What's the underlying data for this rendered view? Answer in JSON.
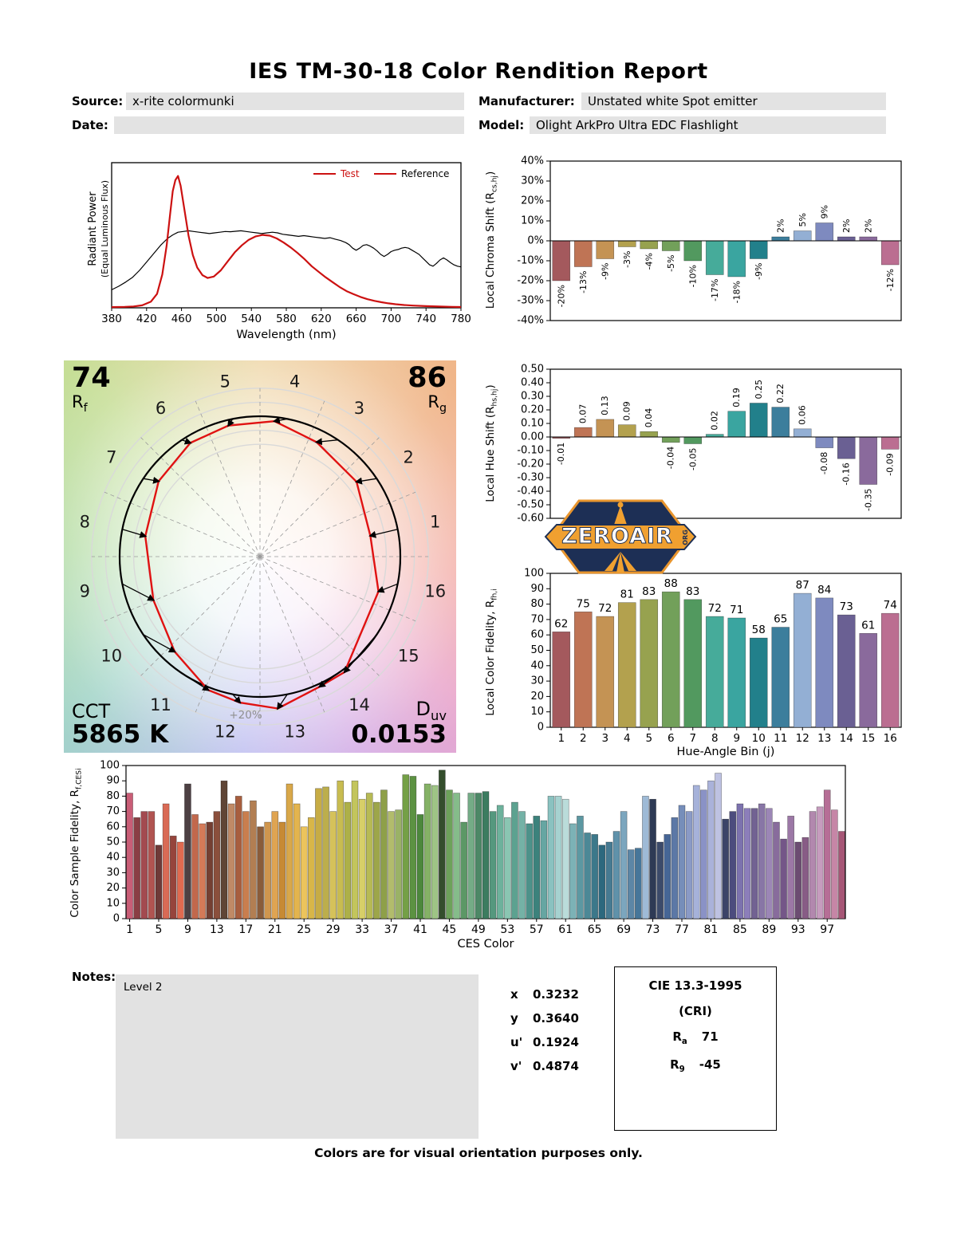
{
  "report": {
    "title": "IES TM-30-18 Color Rendition Report",
    "fields": {
      "source_label": "Source:",
      "source": "x-rite colormunki",
      "manufacturer_label": "Manufacturer:",
      "manufacturer": "Unstated white Spot emitter",
      "date_label": "Date:",
      "date": "",
      "model_label": "Model:",
      "model": "Olight ArkPro Ultra EDC Flashlight"
    },
    "notes_label": "Notes:",
    "notes": "Level 2",
    "footer": "Colors are for visual orientation purposes only."
  },
  "cvg": {
    "rf": "74",
    "rf_letter": "R",
    "rf_sub": "f",
    "rg": "86",
    "rg_letter": "R",
    "rg_sub": "g",
    "cct_label": "CCT",
    "cct": "5865 K",
    "duv_letter": "D",
    "duv_sub": "uv",
    "duv": "0.0153",
    "ring_label": "+20%"
  },
  "chromaticity": {
    "rows": [
      {
        "label": "x",
        "value": "0.3232"
      },
      {
        "label": "y",
        "value": "0.3640"
      },
      {
        "label": "u'",
        "value": "0.1924"
      },
      {
        "label": "v'",
        "value": "0.4874"
      }
    ]
  },
  "cri": {
    "title": "CIE 13.3-1995",
    "subtitle": "(CRI)",
    "ra_letter": "R",
    "ra_sub": "a",
    "ra_value": "71",
    "r9_letter": "R",
    "r9_sub": "9",
    "r9_value": "-45"
  },
  "labels": {
    "spd_ylabel_1": "Radiant Power",
    "spd_ylabel_2": "(Equal Luminous Flux)",
    "spd_xlabel": "Wavelength (nm)",
    "chroma_ylabel_pre": "Local Chroma Shift (R",
    "chroma_ylabel_sub": "cs,hj",
    "chroma_ylabel_post": ")",
    "hue_ylabel_pre": "Local Hue Shift (R",
    "hue_ylabel_sub": "hs,hj",
    "hue_ylabel_post": ")",
    "fid_ylabel_pre": "Local Color Fidelity, R",
    "fid_ylabel_sub": "fh,i",
    "fid_ylabel_post": "",
    "fid_xlabel": "Hue-Angle Bin (j)",
    "ces_ylabel_pre": "Color Sample Fidelity, R",
    "ces_ylabel_sub": "f,CESi",
    "ces_ylabel_post": "",
    "ces_xlabel": "CES Color"
  },
  "logo": {
    "text": "ZEROAIR",
    "suffix": "ORG"
  },
  "hue_bin_colors": [
    "#a4595d",
    "#bf7455",
    "#c49354",
    "#b3a14e",
    "#97a24f",
    "#72a05a",
    "#52995f",
    "#46ab9a",
    "#3aa5a0",
    "#22808b",
    "#3c7e9c",
    "#93afd4",
    "#7e8abf",
    "#6a6093",
    "#8a6a9c",
    "#bb6e91"
  ],
  "chart_data": [
    {
      "id": "spd",
      "type": "line",
      "xlabel": "Wavelength (nm)",
      "ylabel": "Radiant Power (Equal Luminous Flux)",
      "xlim": [
        380,
        780
      ],
      "x_tick_step": 40,
      "legend_position": "top-right",
      "series": [
        {
          "name": "Test",
          "color": "#cc1111",
          "points": [
            [
              380,
              0.005
            ],
            [
              395,
              0.007
            ],
            [
              405,
              0.01
            ],
            [
              415,
              0.018
            ],
            [
              425,
              0.045
            ],
            [
              432,
              0.1
            ],
            [
              438,
              0.24
            ],
            [
              443,
              0.45
            ],
            [
              447,
              0.68
            ],
            [
              450,
              0.84
            ],
            [
              453,
              0.92
            ],
            [
              456,
              0.95
            ],
            [
              459,
              0.88
            ],
            [
              463,
              0.72
            ],
            [
              468,
              0.52
            ],
            [
              473,
              0.38
            ],
            [
              478,
              0.29
            ],
            [
              484,
              0.235
            ],
            [
              490,
              0.215
            ],
            [
              497,
              0.225
            ],
            [
              505,
              0.27
            ],
            [
              513,
              0.335
            ],
            [
              521,
              0.4
            ],
            [
              529,
              0.45
            ],
            [
              537,
              0.49
            ],
            [
              545,
              0.515
            ],
            [
              553,
              0.525
            ],
            [
              561,
              0.52
            ],
            [
              569,
              0.5
            ],
            [
              577,
              0.47
            ],
            [
              585,
              0.435
            ],
            [
              593,
              0.395
            ],
            [
              601,
              0.35
            ],
            [
              609,
              0.3
            ],
            [
              617,
              0.26
            ],
            [
              625,
              0.22
            ],
            [
              633,
              0.185
            ],
            [
              641,
              0.15
            ],
            [
              649,
              0.12
            ],
            [
              657,
              0.098
            ],
            [
              665,
              0.078
            ],
            [
              673,
              0.062
            ],
            [
              681,
              0.05
            ],
            [
              689,
              0.04
            ],
            [
              697,
              0.032
            ],
            [
              705,
              0.026
            ],
            [
              715,
              0.02
            ],
            [
              725,
              0.016
            ],
            [
              740,
              0.012
            ],
            [
              755,
              0.009
            ],
            [
              770,
              0.007
            ],
            [
              780,
              0.006
            ]
          ]
        },
        {
          "name": "Reference",
          "color": "#000000",
          "points": [
            [
              380,
              0.13
            ],
            [
              388,
              0.155
            ],
            [
              396,
              0.185
            ],
            [
              404,
              0.22
            ],
            [
              412,
              0.27
            ],
            [
              420,
              0.33
            ],
            [
              428,
              0.39
            ],
            [
              436,
              0.45
            ],
            [
              444,
              0.5
            ],
            [
              450,
              0.525
            ],
            [
              456,
              0.545
            ],
            [
              462,
              0.55
            ],
            [
              468,
              0.555
            ],
            [
              474,
              0.55
            ],
            [
              480,
              0.545
            ],
            [
              486,
              0.54
            ],
            [
              492,
              0.535
            ],
            [
              498,
              0.54
            ],
            [
              504,
              0.545
            ],
            [
              510,
              0.55
            ],
            [
              516,
              0.548
            ],
            [
              522,
              0.552
            ],
            [
              528,
              0.555
            ],
            [
              534,
              0.55
            ],
            [
              540,
              0.545
            ],
            [
              546,
              0.54
            ],
            [
              552,
              0.535
            ],
            [
              558,
              0.54
            ],
            [
              564,
              0.545
            ],
            [
              570,
              0.54
            ],
            [
              576,
              0.53
            ],
            [
              582,
              0.525
            ],
            [
              588,
              0.52
            ],
            [
              594,
              0.515
            ],
            [
              600,
              0.52
            ],
            [
              606,
              0.515
            ],
            [
              612,
              0.51
            ],
            [
              618,
              0.505
            ],
            [
              624,
              0.5
            ],
            [
              630,
              0.505
            ],
            [
              636,
              0.495
            ],
            [
              642,
              0.485
            ],
            [
              648,
              0.47
            ],
            [
              652,
              0.455
            ],
            [
              656,
              0.43
            ],
            [
              660,
              0.415
            ],
            [
              664,
              0.43
            ],
            [
              668,
              0.45
            ],
            [
              672,
              0.455
            ],
            [
              676,
              0.445
            ],
            [
              680,
              0.43
            ],
            [
              684,
              0.41
            ],
            [
              688,
              0.385
            ],
            [
              692,
              0.37
            ],
            [
              696,
              0.385
            ],
            [
              700,
              0.405
            ],
            [
              704,
              0.415
            ],
            [
              708,
              0.42
            ],
            [
              712,
              0.43
            ],
            [
              716,
              0.435
            ],
            [
              720,
              0.43
            ],
            [
              724,
              0.415
            ],
            [
              728,
              0.4
            ],
            [
              732,
              0.385
            ],
            [
              736,
              0.36
            ],
            [
              740,
              0.335
            ],
            [
              744,
              0.31
            ],
            [
              748,
              0.3
            ],
            [
              752,
              0.32
            ],
            [
              756,
              0.345
            ],
            [
              760,
              0.36
            ],
            [
              764,
              0.345
            ],
            [
              768,
              0.325
            ],
            [
              772,
              0.31
            ],
            [
              776,
              0.3
            ],
            [
              780,
              0.295
            ]
          ]
        }
      ]
    },
    {
      "id": "chroma_shift",
      "type": "bar",
      "ylabel": "Local Chroma Shift (Rcs,hj)",
      "categories": [
        1,
        2,
        3,
        4,
        5,
        6,
        7,
        8,
        9,
        10,
        11,
        12,
        13,
        14,
        15,
        16
      ],
      "values": [
        -20,
        -13,
        -9,
        -3,
        -4,
        -5,
        -10,
        -17,
        -18,
        -9,
        2,
        5,
        9,
        2,
        2,
        -12
      ],
      "value_labels": [
        "-20%",
        "-13%",
        "-9%",
        "-3%",
        "-4%",
        "-5%",
        "-10%",
        "-17%",
        "-18%",
        "-9%",
        "2%",
        "5%",
        "9%",
        "2%",
        "2%",
        "-12%"
      ],
      "ylim": [
        -40,
        40
      ],
      "y_tick_step": 10,
      "y_tick_format": "pct"
    },
    {
      "id": "hue_shift",
      "type": "bar",
      "ylabel": "Local Hue Shift (Rhs,hj)",
      "categories": [
        1,
        2,
        3,
        4,
        5,
        6,
        7,
        8,
        9,
        10,
        11,
        12,
        13,
        14,
        15,
        16
      ],
      "values": [
        -0.01,
        0.07,
        0.13,
        0.09,
        0.04,
        -0.04,
        -0.05,
        0.02,
        0.19,
        0.25,
        0.22,
        0.06,
        -0.08,
        -0.16,
        -0.35,
        -0.09
      ],
      "value_labels": [
        "-0.01",
        "0.07",
        "0.13",
        "0.09",
        "0.04",
        "-0.04",
        "-0.05",
        "0.02",
        "0.19",
        "0.25",
        "0.22",
        "0.06",
        "-0.08",
        "-0.16",
        "-0.35",
        "-0.09"
      ],
      "ylim": [
        -0.6,
        0.5
      ],
      "y_tick_step": 0.1,
      "y_tick_format": "dec2"
    },
    {
      "id": "fidelity",
      "type": "bar",
      "ylabel": "Local Color Fidelity, Rfh,i",
      "xlabel": "Hue-Angle Bin (j)",
      "categories": [
        1,
        2,
        3,
        4,
        5,
        6,
        7,
        8,
        9,
        10,
        11,
        12,
        13,
        14,
        15,
        16
      ],
      "values": [
        62,
        75,
        72,
        81,
        83,
        88,
        83,
        72,
        71,
        58,
        65,
        87,
        84,
        73,
        61,
        74
      ],
      "ylim": [
        0,
        100
      ],
      "y_tick_step": 10,
      "y_tick_format": "int"
    },
    {
      "id": "ces",
      "type": "bar",
      "ylabel": "Color Sample Fidelity, Rf,CESi",
      "xlabel": "CES Color",
      "n": 99,
      "x_ticks": [
        1,
        5,
        9,
        13,
        17,
        21,
        25,
        29,
        33,
        37,
        41,
        45,
        49,
        53,
        57,
        61,
        65,
        69,
        73,
        77,
        81,
        85,
        89,
        93,
        97
      ],
      "values": [
        82,
        66,
        70,
        70,
        48,
        75,
        54,
        50,
        88,
        68,
        62,
        63,
        70,
        90,
        75,
        80,
        70,
        77,
        60,
        63,
        70,
        63,
        88,
        75,
        60,
        66,
        85,
        86,
        70,
        90,
        76,
        90,
        78,
        82,
        76,
        84,
        70,
        71,
        94,
        93,
        68,
        88,
        87,
        97,
        84,
        82,
        63,
        82,
        82,
        83,
        70,
        74,
        66,
        76,
        70,
        62,
        67,
        64,
        80,
        80,
        78,
        62,
        67,
        56,
        55,
        48,
        50,
        57,
        70,
        45,
        46,
        80,
        78,
        50,
        55,
        66,
        74,
        70,
        87,
        84,
        90,
        95,
        65,
        70,
        75,
        72,
        72,
        75,
        72,
        63,
        52,
        67,
        50,
        53,
        70,
        73,
        84,
        71,
        57
      ],
      "colors": [
        "#c95d76",
        "#8a3e44",
        "#a34a50",
        "#b15451",
        "#6e3a38",
        "#d96a55",
        "#96443c",
        "#e06a50",
        "#4d4043",
        "#c2684c",
        "#d47a58",
        "#743f32",
        "#8a4f3c",
        "#5f4536",
        "#c08a66",
        "#a85e3e",
        "#c97e4e",
        "#b27e52",
        "#8a5c3a",
        "#d0964e",
        "#dfa452",
        "#c78a34",
        "#d9a84a",
        "#e3b44e",
        "#ecc45c",
        "#d8b648",
        "#c7ac44",
        "#bcae4c",
        "#d5c25a",
        "#c8bc50",
        "#adb048",
        "#c3c55c",
        "#d7cf68",
        "#b7ba54",
        "#9da64a",
        "#8ea049",
        "#b2bc6c",
        "#9ab266",
        "#74a046",
        "#5c9242",
        "#4c883c",
        "#85b266",
        "#9ec485",
        "#344e2c",
        "#6da25a",
        "#85bc8a",
        "#5c9866",
        "#74ac86",
        "#4c8866",
        "#3c7c60",
        "#55987e",
        "#6db29c",
        "#8ac6b2",
        "#5ca290",
        "#74b2a6",
        "#4c928a",
        "#3c827c",
        "#66a6a2",
        "#8ac2c0",
        "#a6d2d0",
        "#badcda",
        "#7cb2b6",
        "#5c98a2",
        "#4c8896",
        "#3c788a",
        "#2c687e",
        "#467a92",
        "#6092aa",
        "#7ca6be",
        "#5c86a6",
        "#46769a",
        "#9ebad6",
        "#2e3a55",
        "#3c4a6a",
        "#466696",
        "#5c78a6",
        "#768eba",
        "#8a9ac6",
        "#a6b2da",
        "#8a92c6",
        "#aab2da",
        "#bec2e2",
        "#3c4468",
        "#4c4c7e",
        "#7c72ae",
        "#8c7eba",
        "#726292",
        "#8876a6",
        "#9c86b6",
        "#886c9c",
        "#745688",
        "#9c78a6",
        "#6c4c72",
        "#885c86",
        "#b288ae",
        "#c69cbe",
        "#b66e96",
        "#c686a6",
        "#a65676"
      ],
      "ylim": [
        0,
        100
      ],
      "y_tick_step": 10,
      "y_tick_format": "int"
    },
    {
      "id": "cvg",
      "type": "cvg",
      "rf": 74,
      "rg": 86,
      "cct_k": 5865,
      "duv": 0.0153,
      "ring_label": "+20%",
      "bins": [
        1,
        2,
        3,
        4,
        5,
        6,
        7,
        8,
        9,
        10,
        11,
        12,
        13,
        14,
        15,
        16
      ]
    }
  ]
}
